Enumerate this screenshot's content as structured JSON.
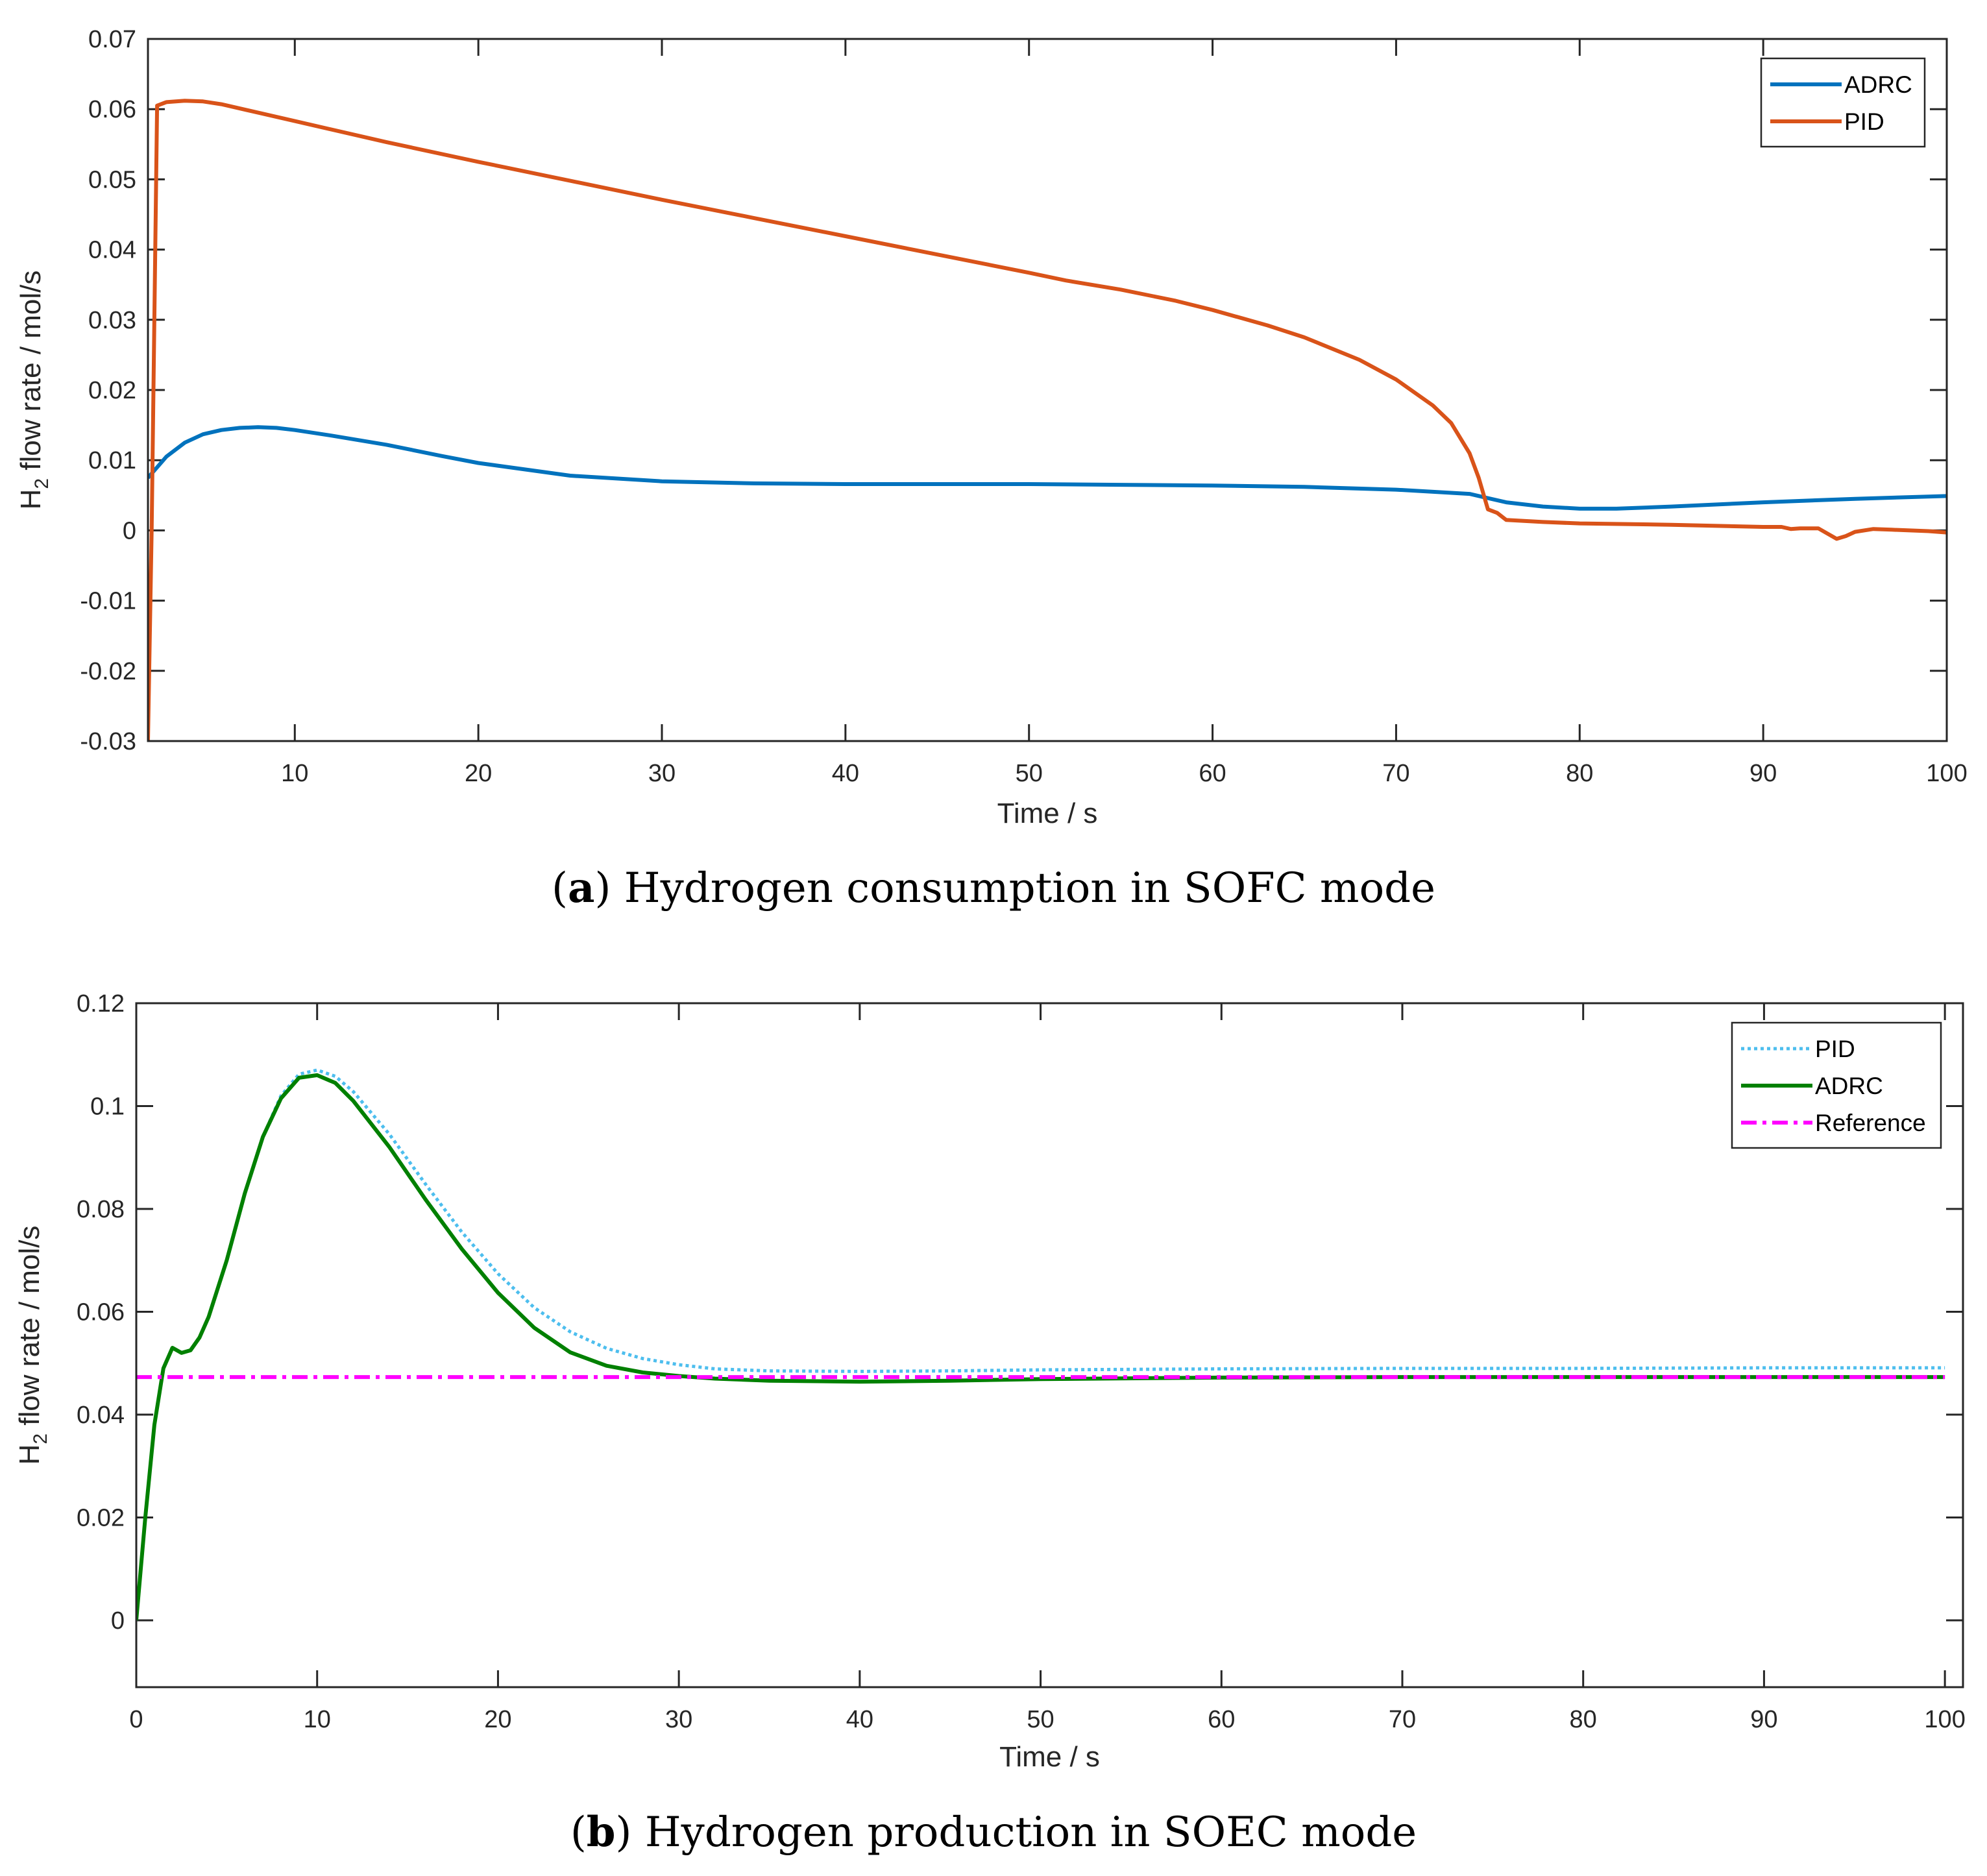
{
  "chart_data": [
    {
      "type": "line",
      "panel": "a",
      "caption_letter": "a",
      "caption_text": "Hydrogen consumption in SOFC mode",
      "ylabel_main": "H",
      "ylabel_sub": "2",
      "ylabel_rest": " flow rate / mol/s",
      "xlabel": "Time / s",
      "xlim": [
        2,
        100
      ],
      "ylim": [
        -0.03,
        0.07
      ],
      "xticks": [
        10,
        20,
        30,
        40,
        50,
        60,
        70,
        80,
        90,
        100
      ],
      "yticks": [
        -0.03,
        -0.02,
        -0.01,
        0,
        0.01,
        0.02,
        0.03,
        0.04,
        0.05,
        0.06,
        0.07
      ],
      "xtick_labels": [
        "10",
        "20",
        "30",
        "40",
        "50",
        "60",
        "70",
        "80",
        "90",
        "100"
      ],
      "ytick_labels": [
        "-0.03",
        "-0.02",
        "-0.01",
        "0",
        "0.01",
        "0.02",
        "0.03",
        "0.04",
        "0.05",
        "0.06",
        "0.07"
      ],
      "legend": [
        "ADRC",
        "PID"
      ],
      "legend_position": "top-right",
      "series": [
        {
          "name": "ADRC",
          "color": "#0072BD",
          "style": "solid",
          "points": [
            [
              2,
              0.0075
            ],
            [
              3,
              0.0105
            ],
            [
              4,
              0.0125
            ],
            [
              5,
              0.0137
            ],
            [
              6,
              0.0143
            ],
            [
              7,
              0.0146
            ],
            [
              8,
              0.0147
            ],
            [
              9,
              0.0146
            ],
            [
              10,
              0.0143
            ],
            [
              12,
              0.0135
            ],
            [
              15,
              0.0122
            ],
            [
              18,
              0.0106
            ],
            [
              20,
              0.0096
            ],
            [
              25,
              0.0078
            ],
            [
              30,
              0.007
            ],
            [
              35,
              0.0067
            ],
            [
              40,
              0.0066
            ],
            [
              45,
              0.0066
            ],
            [
              50,
              0.0066
            ],
            [
              55,
              0.0065
            ],
            [
              60,
              0.0064
            ],
            [
              65,
              0.0062
            ],
            [
              70,
              0.0058
            ],
            [
              74,
              0.0052
            ],
            [
              76,
              0.004
            ],
            [
              78,
              0.0034
            ],
            [
              80,
              0.0031
            ],
            [
              82,
              0.0031
            ],
            [
              85,
              0.0034
            ],
            [
              90,
              0.004
            ],
            [
              95,
              0.0045
            ],
            [
              100,
              0.0049
            ]
          ]
        },
        {
          "name": "PID",
          "color": "#D95319",
          "style": "solid",
          "points": [
            [
              2,
              -0.03
            ],
            [
              2.2,
              0.0
            ],
            [
              2.5,
              0.0605
            ],
            [
              3,
              0.061
            ],
            [
              4,
              0.0612
            ],
            [
              5,
              0.0611
            ],
            [
              6,
              0.0607
            ],
            [
              8,
              0.0595
            ],
            [
              10,
              0.0583
            ],
            [
              15,
              0.0553
            ],
            [
              20,
              0.0525
            ],
            [
              25,
              0.0498
            ],
            [
              30,
              0.0471
            ],
            [
              35,
              0.0445
            ],
            [
              40,
              0.0419
            ],
            [
              45,
              0.0393
            ],
            [
              50,
              0.0367
            ],
            [
              52,
              0.0356
            ],
            [
              55,
              0.0343
            ],
            [
              58,
              0.0327
            ],
            [
              60,
              0.0314
            ],
            [
              63,
              0.0292
            ],
            [
              65,
              0.0275
            ],
            [
              68,
              0.0243
            ],
            [
              70,
              0.0215
            ],
            [
              72,
              0.0178
            ],
            [
              73,
              0.0153
            ],
            [
              74,
              0.011
            ],
            [
              74.5,
              0.0075
            ],
            [
              75,
              0.003
            ],
            [
              75.5,
              0.0025
            ],
            [
              76,
              0.0015
            ],
            [
              78,
              0.0012
            ],
            [
              80,
              0.001
            ],
            [
              85,
              0.0008
            ],
            [
              90,
              0.0005
            ],
            [
              91,
              0.0005
            ],
            [
              91.5,
              0.0002
            ],
            [
              92,
              0.0003
            ],
            [
              93,
              0.0003
            ],
            [
              94,
              -0.0012
            ],
            [
              94.5,
              -0.0008
            ],
            [
              95,
              -0.0002
            ],
            [
              96,
              0.0002
            ],
            [
              97,
              0.0001
            ],
            [
              99,
              -0.0001
            ],
            [
              100,
              -0.0003
            ]
          ]
        }
      ]
    },
    {
      "type": "line",
      "panel": "b",
      "caption_letter": "b",
      "caption_text": "Hydrogen production in SOEC mode",
      "ylabel_main": "H",
      "ylabel_sub": "2",
      "ylabel_rest": " flow rate / mol/s",
      "xlabel": "Time / s",
      "xlim": [
        0,
        101
      ],
      "ylim": [
        -0.013,
        0.12
      ],
      "xticks": [
        0,
        10,
        20,
        30,
        40,
        50,
        60,
        70,
        80,
        90,
        100
      ],
      "yticks": [
        0,
        0.02,
        0.04,
        0.06,
        0.08,
        0.1,
        0.12
      ],
      "xtick_labels": [
        "0",
        "10",
        "20",
        "30",
        "40",
        "50",
        "60",
        "70",
        "80",
        "90",
        "100"
      ],
      "ytick_labels": [
        "0",
        "0.02",
        "0.04",
        "0.06",
        "0.08",
        "0.1",
        "0.12"
      ],
      "legend": [
        "PID",
        "ADRC",
        "Reference"
      ],
      "legend_position": "top-right",
      "series": [
        {
          "name": "PID",
          "color": "#4DBEEE",
          "style": "dotted",
          "points": [
            [
              0,
              0
            ],
            [
              0.5,
              0.02
            ],
            [
              1,
              0.038
            ],
            [
              1.5,
              0.049
            ],
            [
              2,
              0.053
            ],
            [
              2.5,
              0.052
            ],
            [
              3,
              0.0525
            ],
            [
              3.5,
              0.055
            ],
            [
              4,
              0.059
            ],
            [
              5,
              0.07
            ],
            [
              6,
              0.083
            ],
            [
              7,
              0.094
            ],
            [
              8,
              0.102
            ],
            [
              9,
              0.1062
            ],
            [
              10,
              0.107
            ],
            [
              11,
              0.1058
            ],
            [
              12,
              0.1028
            ],
            [
              14,
              0.0945
            ],
            [
              16,
              0.0848
            ],
            [
              18,
              0.0755
            ],
            [
              20,
              0.0674
            ],
            [
              22,
              0.0608
            ],
            [
              24,
              0.0561
            ],
            [
              26,
              0.0529
            ],
            [
              28,
              0.0509
            ],
            [
              30,
              0.0497
            ],
            [
              32,
              0.0489
            ],
            [
              35,
              0.0485
            ],
            [
              40,
              0.0484
            ],
            [
              45,
              0.0485
            ],
            [
              50,
              0.0487
            ],
            [
              60,
              0.0489
            ],
            [
              70,
              0.049
            ],
            [
              80,
              0.049
            ],
            [
              90,
              0.0491
            ],
            [
              100,
              0.0491
            ]
          ]
        },
        {
          "name": "ADRC",
          "color": "#008000",
          "style": "solid",
          "points": [
            [
              0,
              0
            ],
            [
              0.5,
              0.02
            ],
            [
              1,
              0.038
            ],
            [
              1.5,
              0.049
            ],
            [
              2,
              0.053
            ],
            [
              2.5,
              0.052
            ],
            [
              3,
              0.0525
            ],
            [
              3.5,
              0.055
            ],
            [
              4,
              0.059
            ],
            [
              5,
              0.07
            ],
            [
              6,
              0.083
            ],
            [
              7,
              0.094
            ],
            [
              8,
              0.1015
            ],
            [
              9,
              0.1055
            ],
            [
              10,
              0.106
            ],
            [
              11,
              0.1045
            ],
            [
              12,
              0.101
            ],
            [
              14,
              0.092
            ],
            [
              16,
              0.0818
            ],
            [
              18,
              0.0722
            ],
            [
              20,
              0.0637
            ],
            [
              22,
              0.0569
            ],
            [
              24,
              0.0521
            ],
            [
              26,
              0.0495
            ],
            [
              28,
              0.0482
            ],
            [
              30,
              0.0475
            ],
            [
              32,
              0.047
            ],
            [
              35,
              0.0466
            ],
            [
              40,
              0.0464
            ],
            [
              45,
              0.0466
            ],
            [
              50,
              0.0469
            ],
            [
              60,
              0.0472
            ],
            [
              70,
              0.0473
            ],
            [
              80,
              0.0473
            ],
            [
              90,
              0.0473
            ],
            [
              100,
              0.0473
            ]
          ]
        },
        {
          "name": "Reference",
          "color": "#FF00FF",
          "style": "dashdot",
          "points": [
            [
              0,
              0.0473
            ],
            [
              100,
              0.0473
            ]
          ]
        }
      ]
    }
  ]
}
